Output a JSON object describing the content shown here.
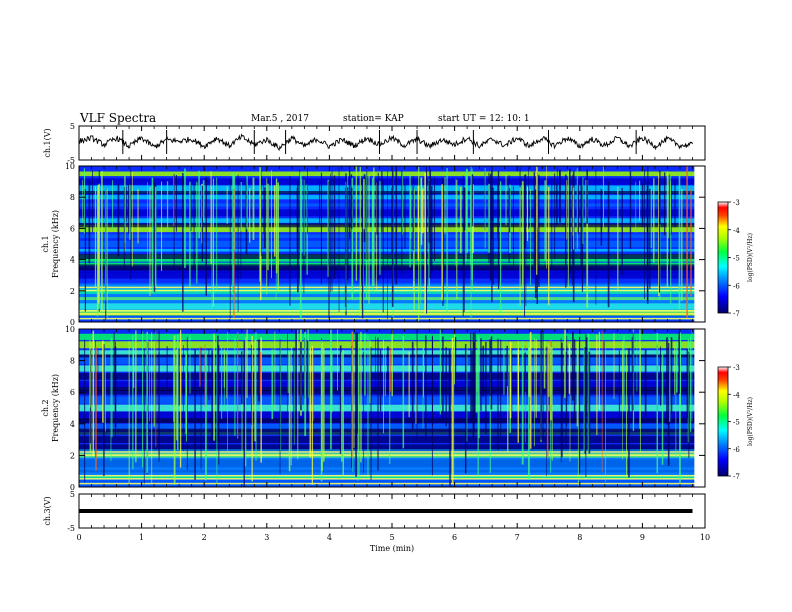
{
  "header": {
    "title": "VLF Spectra",
    "date": "Mar.5  , 2017",
    "station": "station= KAP",
    "start": "start  UT =   12: 10: 1"
  },
  "colors": {
    "spectrum_scale": [
      "#00007a",
      "#0000ff",
      "#0090ff",
      "#00ffff",
      "#00ff60",
      "#a0ff00",
      "#ffff00",
      "#ff8000",
      "#ff0000",
      "#ffffff"
    ],
    "trace": "#000000"
  },
  "chart_data": [
    {
      "type": "line",
      "panel": "ch1-voltage",
      "ylabel": "ch.1(V)",
      "ylim": [
        -5,
        5
      ],
      "yticks": [
        "5",
        "-5"
      ],
      "xlim": [
        0,
        10
      ],
      "series": [
        {
          "x": [
            0,
            0.2,
            0.4,
            0.6,
            0.8,
            1.0,
            1.2,
            1.4,
            1.6,
            1.8,
            2.0,
            2.2,
            2.4,
            2.6,
            2.8,
            3.0,
            3.2,
            3.4,
            3.6,
            3.8,
            4.0,
            4.2,
            4.4,
            4.6,
            4.8,
            5.0,
            5.2,
            5.4,
            5.6,
            5.8,
            6.0,
            6.2,
            6.4,
            6.6,
            6.8,
            7.0,
            7.2,
            7.4,
            7.6,
            7.8,
            8.0,
            8.2,
            8.4,
            8.6,
            8.8,
            9.0,
            9.2,
            9.4,
            9.6,
            9.8
          ],
          "values": [
            0.5,
            1.5,
            -0.5,
            1.5,
            -1.0,
            1.5,
            -1.2,
            1.0,
            0.5,
            1.2,
            -1.0,
            1.5,
            -0.8,
            1.8,
            -0.5,
            1.0,
            -1.5,
            1.5,
            -1.0,
            1.2,
            -1.0,
            1.0,
            -0.8,
            1.5,
            -0.5,
            1.5,
            -0.8,
            1.2,
            -1.0,
            1.0,
            -0.5,
            1.5,
            -1.0,
            1.2,
            -0.8,
            1.5,
            -1.0,
            1.5,
            -0.8,
            1.5,
            -1.0,
            1.2,
            -0.8,
            1.5,
            -1.0,
            1.5,
            -1.0,
            1.2,
            -0.8,
            -0.5
          ]
        }
      ]
    },
    {
      "type": "heatmap",
      "panel": "ch1-spectrogram",
      "ylabel": "ch.1",
      "ylabel2": "Frequency  (kHz)",
      "ylim": [
        0,
        10
      ],
      "yticks": [
        "0",
        "2",
        "4",
        "6",
        "8",
        "10"
      ],
      "xlim": [
        0,
        10
      ],
      "colorbar": {
        "label": "log(PSD)(V²/Hz)",
        "range": [
          -7,
          -3
        ],
        "ticks": [
          "-3",
          "-4",
          "-5",
          "-6",
          "-7"
        ]
      },
      "bands_kHz": [
        0.3,
        0.6,
        1.0,
        1.5,
        2.0,
        2.3,
        3.0,
        3.3,
        3.7,
        4.1,
        4.6,
        5.0,
        5.5,
        6.0,
        6.5,
        7.0,
        7.5,
        8.0,
        8.5,
        9.0,
        9.5
      ]
    },
    {
      "type": "heatmap",
      "panel": "ch2-spectrogram",
      "ylabel": "ch.2",
      "ylabel2": "Frequency  (kHz)",
      "ylim": [
        0,
        10
      ],
      "yticks": [
        "0",
        "2",
        "4",
        "6",
        "8",
        "10"
      ],
      "xlim": [
        0,
        10
      ],
      "colorbar": {
        "label": "log(PSD)(V²/Hz)",
        "range": [
          -7,
          -3
        ],
        "ticks": [
          "-3",
          "-4",
          "-5",
          "-6",
          "-7"
        ]
      },
      "bands_kHz": [
        0.3,
        0.6,
        1.0,
        1.5,
        2.0,
        2.5,
        3.0,
        3.4,
        3.8,
        4.2,
        4.6,
        5.0,
        5.5,
        6.0,
        6.5,
        7.0,
        7.5,
        8.0,
        8.5,
        9.0,
        9.5
      ]
    },
    {
      "type": "line",
      "panel": "ch3-voltage",
      "ylabel": "ch.3(V)",
      "ylim": [
        -5,
        5
      ],
      "yticks": [
        "5",
        "-5"
      ],
      "xlim": [
        0,
        10
      ],
      "xlabel": "Time  (min)",
      "xticks": [
        "0",
        "1",
        "2",
        "3",
        "4",
        "5",
        "6",
        "7",
        "8",
        "9",
        "10"
      ],
      "series": [
        {
          "x": [
            0,
            9.8
          ],
          "values": [
            0,
            0
          ]
        }
      ]
    }
  ]
}
